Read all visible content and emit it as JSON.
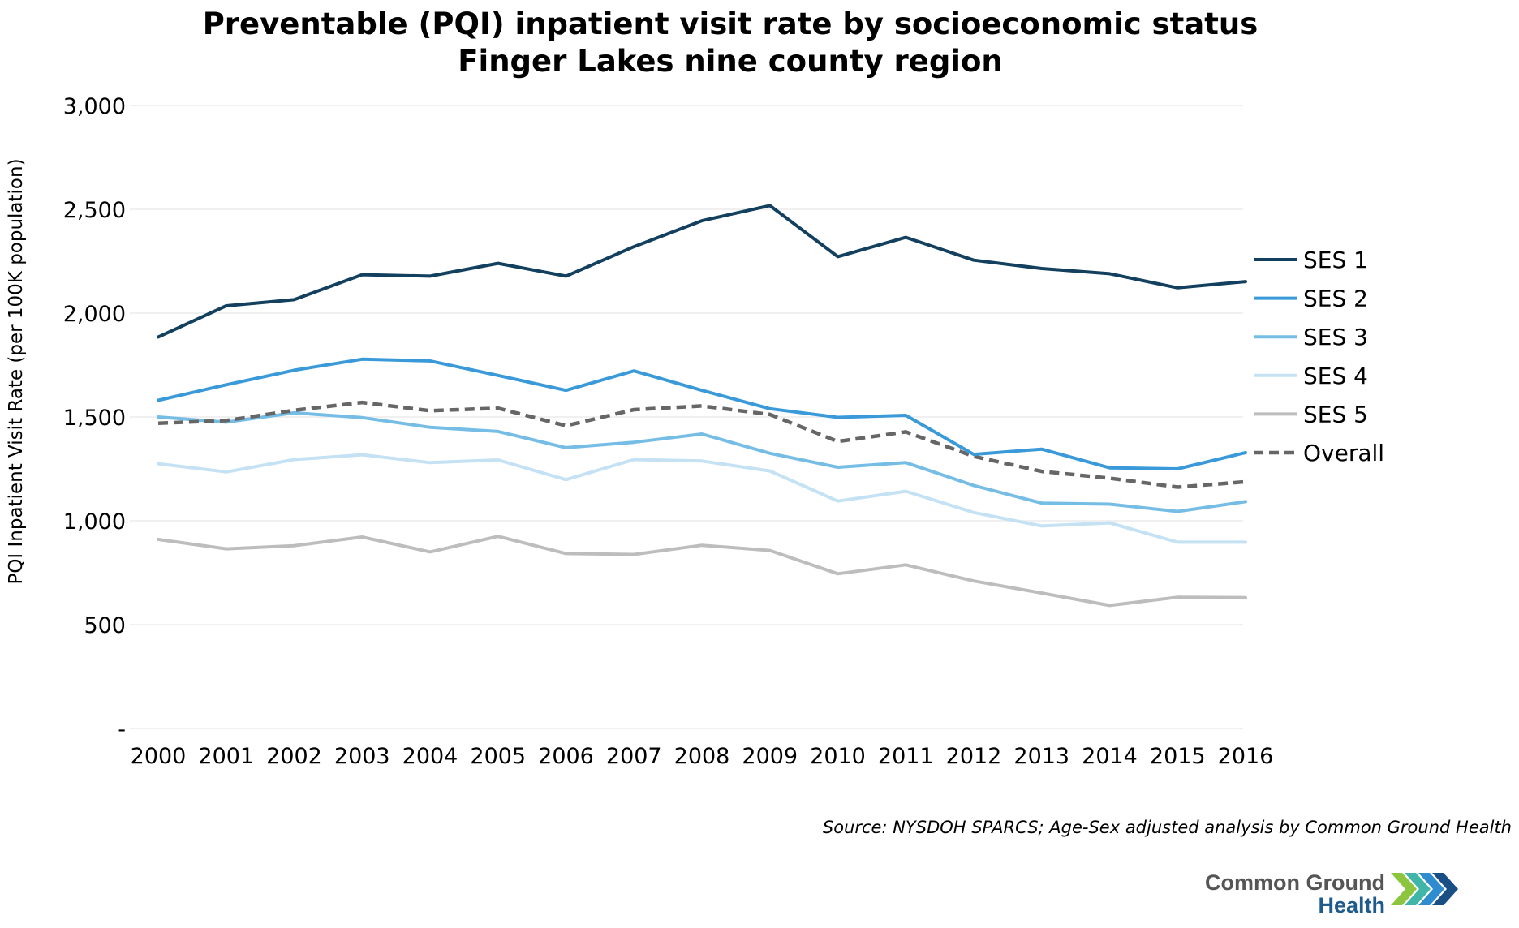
{
  "colors": {
    "SES 1": "#12405e",
    "SES 2": "#3a9ad9",
    "SES 3": "#76bde6",
    "SES 4": "#c4e2f3",
    "SES 5": "#bdbdbd",
    "Overall": "#666666",
    "grid": "#e6e6e6",
    "logo_dark": "#555555",
    "logo_blue": "#1f5c8c",
    "chev1": "#8cc63f",
    "chev2": "#3fb6a8",
    "chev3": "#2e8ccf",
    "chev4": "#1a4f85"
  },
  "chart_data": {
    "type": "line",
    "title": "Preventable (PQI) inpatient visit rate by socioeconomic status",
    "subtitle": "Finger Lakes nine county region",
    "xlabel": "",
    "ylabel": "PQI Inpatient Visit Rate (per 100K population)",
    "ylim": [
      0,
      3000
    ],
    "yticks": [
      0,
      500,
      1000,
      1500,
      2000,
      2500,
      3000
    ],
    "ytick_labels": [
      "-",
      "500",
      "1,000",
      "1,500",
      "2,000",
      "2,500",
      "3,000"
    ],
    "grid": true,
    "legend_position": "right",
    "categories": [
      "2000",
      "2001",
      "2002",
      "2003",
      "2004",
      "2005",
      "2006",
      "2007",
      "2008",
      "2009",
      "2010",
      "2011",
      "2012",
      "2013",
      "2014",
      "2015",
      "2016"
    ],
    "series": [
      {
        "name": "SES 1",
        "style": "solid",
        "values": [
          1885,
          2035,
          2065,
          2185,
          2178,
          2240,
          2178,
          2320,
          2445,
          2518,
          2272,
          2365,
          2255,
          2215,
          2190,
          2122,
          2152
        ]
      },
      {
        "name": "SES 2",
        "style": "solid",
        "values": [
          1580,
          1655,
          1725,
          1778,
          1770,
          1700,
          1628,
          1722,
          1628,
          1540,
          1498,
          1508,
          1320,
          1345,
          1255,
          1250,
          1328
        ]
      },
      {
        "name": "SES 3",
        "style": "solid",
        "values": [
          1500,
          1475,
          1520,
          1497,
          1450,
          1430,
          1352,
          1378,
          1418,
          1325,
          1258,
          1280,
          1170,
          1085,
          1080,
          1045,
          1092
        ]
      },
      {
        "name": "SES 4",
        "style": "solid",
        "values": [
          1275,
          1235,
          1295,
          1318,
          1280,
          1293,
          1198,
          1295,
          1288,
          1240,
          1095,
          1142,
          1040,
          975,
          990,
          897,
          897
        ]
      },
      {
        "name": "SES 5",
        "style": "solid",
        "values": [
          910,
          865,
          880,
          922,
          850,
          925,
          842,
          838,
          882,
          857,
          745,
          788,
          710,
          652,
          592,
          632,
          630
        ]
      },
      {
        "name": "Overall",
        "style": "dashed",
        "values": [
          1470,
          1483,
          1532,
          1570,
          1530,
          1542,
          1458,
          1535,
          1553,
          1512,
          1382,
          1428,
          1310,
          1238,
          1205,
          1162,
          1188
        ]
      }
    ]
  },
  "source_text": "Source: NYSDOH SPARCS; Age-Sex adjusted analysis by Common Ground Health",
  "logo": {
    "line1": "Common Ground",
    "line2": "Health"
  }
}
